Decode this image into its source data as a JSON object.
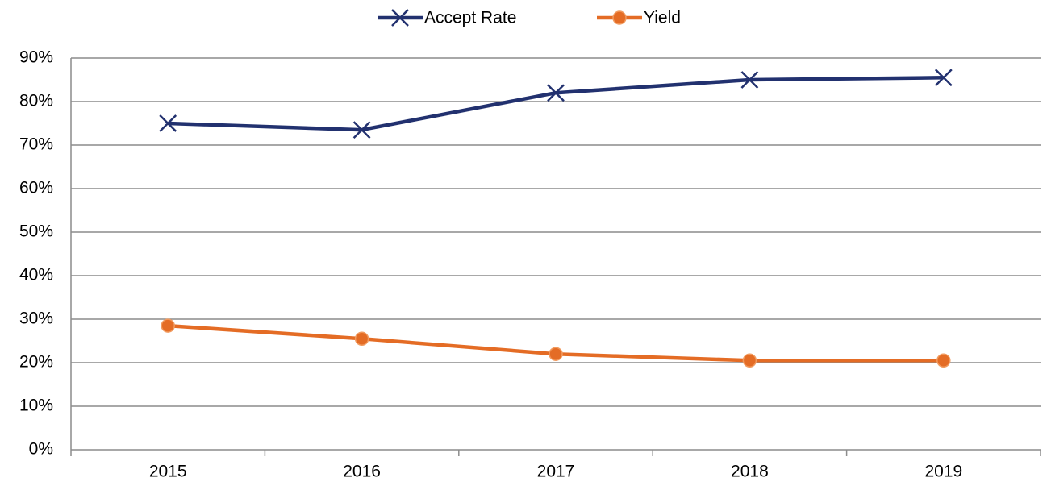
{
  "chart_data": {
    "type": "line",
    "categories": [
      "2015",
      "2016",
      "2017",
      "2018",
      "2019"
    ],
    "series": [
      {
        "name": "Accept Rate",
        "color": "#22316f",
        "marker": "x",
        "values": [
          75,
          73.5,
          82,
          85,
          85.5
        ]
      },
      {
        "name": "Yield",
        "color": "#e46c25",
        "marker": "o",
        "values": [
          28.5,
          25.5,
          22,
          20.5,
          20.5
        ]
      }
    ],
    "ylim": [
      0,
      90
    ],
    "yticks": [
      {
        "value": 0,
        "label": "0%"
      },
      {
        "value": 10,
        "label": "10%"
      },
      {
        "value": 20,
        "label": "20%"
      },
      {
        "value": 30,
        "label": "30%"
      },
      {
        "value": 40,
        "label": "40%"
      },
      {
        "value": 50,
        "label": "50%"
      },
      {
        "value": 60,
        "label": "60%"
      },
      {
        "value": 70,
        "label": "70%"
      },
      {
        "value": 80,
        "label": "80%"
      },
      {
        "value": 90,
        "label": "90%"
      }
    ],
    "grid": true,
    "legend": "top"
  }
}
